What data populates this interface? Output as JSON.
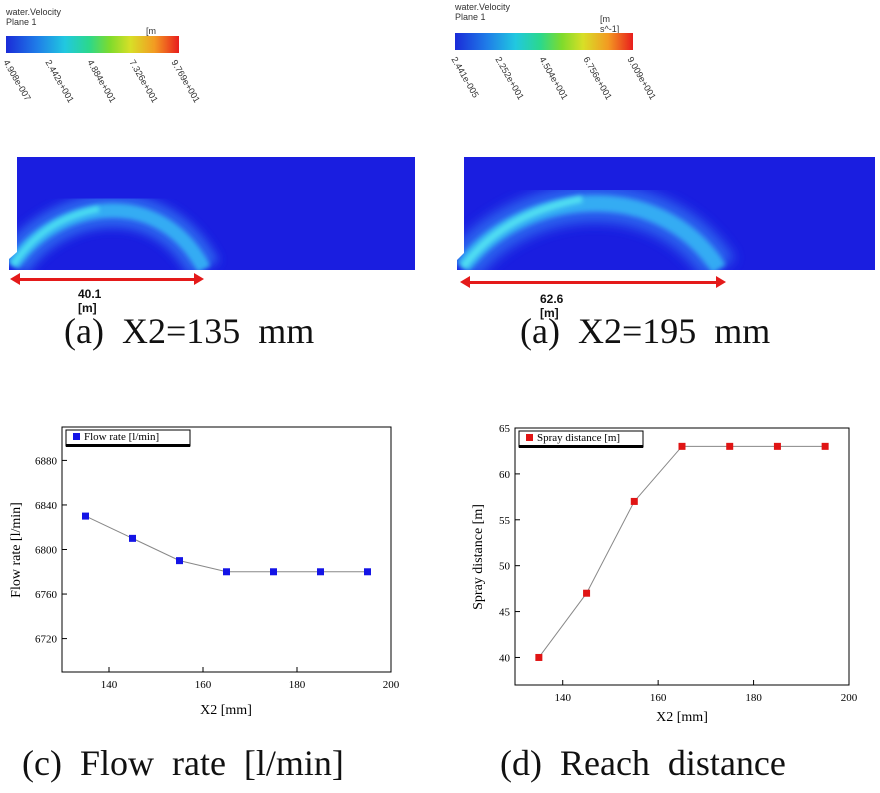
{
  "cfd": [
    {
      "header_line1": "water.Velocity",
      "header_line2": "Plane 1",
      "unit": "[m s^-1]",
      "ticks": [
        "4.908e-007",
        "2.442e+001",
        "4.884e+001",
        "7.326e+001",
        "9.769e+001"
      ],
      "distance_label": "40.1 [m]",
      "caption": "(a)  X2=135  mm"
    },
    {
      "header_line1": "water.Velocity",
      "header_line2": "Plane 1",
      "unit": "[m s^-1]",
      "ticks": [
        "2.441e-005",
        "2.252e+001",
        "4.504e+001",
        "6.756e+001",
        "9.009e+001"
      ],
      "distance_label": "62.6 [m]",
      "caption": "(a)  X2=195  mm"
    }
  ],
  "colors": {
    "domain_blue": "#1a1ee0",
    "arrow_red": "#e41a1a",
    "series_c": "#1414e6",
    "series_d": "#e01414"
  },
  "chart_data": [
    {
      "type": "line",
      "x": [
        135,
        145,
        155,
        165,
        175,
        185,
        195
      ],
      "series": [
        {
          "name": "Flow rate [l/min]",
          "values": [
            6830,
            6810,
            6790,
            6780,
            6780,
            6780,
            6780
          ]
        }
      ],
      "xlabel": "X2 [mm]",
      "ylabel": "Flow rate [l/min]",
      "xlim": [
        130,
        200
      ],
      "ylim": [
        6690,
        6910
      ],
      "xticks": [
        140,
        160,
        180,
        200
      ],
      "yticks": [
        6720,
        6760,
        6800,
        6840,
        6880
      ],
      "legend": "top-left",
      "grid": false,
      "caption": "(c)  Flow  rate  [l/min]"
    },
    {
      "type": "line",
      "x": [
        135,
        145,
        155,
        165,
        175,
        185,
        195
      ],
      "series": [
        {
          "name": "Spray distance [m]",
          "values": [
            40,
            47,
            57,
            63,
            63,
            63,
            63
          ]
        }
      ],
      "xlabel": "X2 [mm]",
      "ylabel": "Spray distance [m]",
      "xlim": [
        130,
        200
      ],
      "ylim": [
        37,
        65
      ],
      "xticks": [
        140,
        160,
        180,
        200
      ],
      "yticks": [
        40,
        45,
        50,
        55,
        60,
        65
      ],
      "legend": "top-left",
      "grid": false,
      "caption": "(d)  Reach  distance"
    }
  ]
}
